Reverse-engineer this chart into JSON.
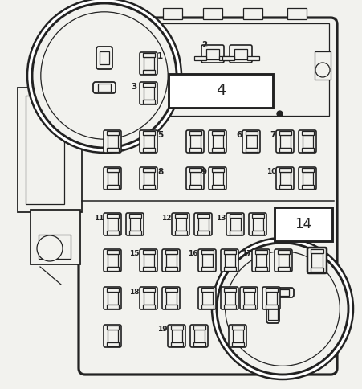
{
  "fig_w": 4.51,
  "fig_h": 4.84,
  "dpi": 100,
  "bg": "#f2f2ee",
  "lc": "#222222",
  "lw_main": 1.8,
  "lw_thin": 0.9,
  "lw_med": 1.3
}
